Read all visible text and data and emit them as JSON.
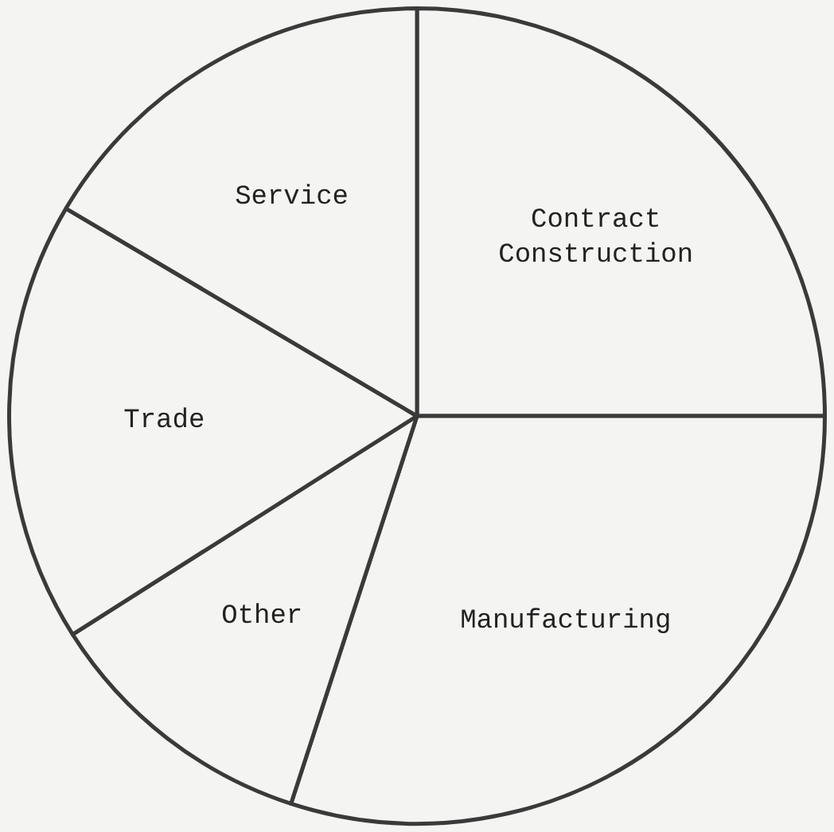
{
  "chart_data": {
    "type": "pie",
    "categories": [
      "Contract Construction",
      "Manufacturing",
      "Other",
      "Trade",
      "Service"
    ],
    "values": [
      25,
      30,
      11,
      17.5,
      16.5
    ],
    "colors": [
      "#f4f4f2",
      "#f4f4f2",
      "#f4f4f2",
      "#f4f4f2",
      "#f4f4f2"
    ],
    "legend": false
  }
}
